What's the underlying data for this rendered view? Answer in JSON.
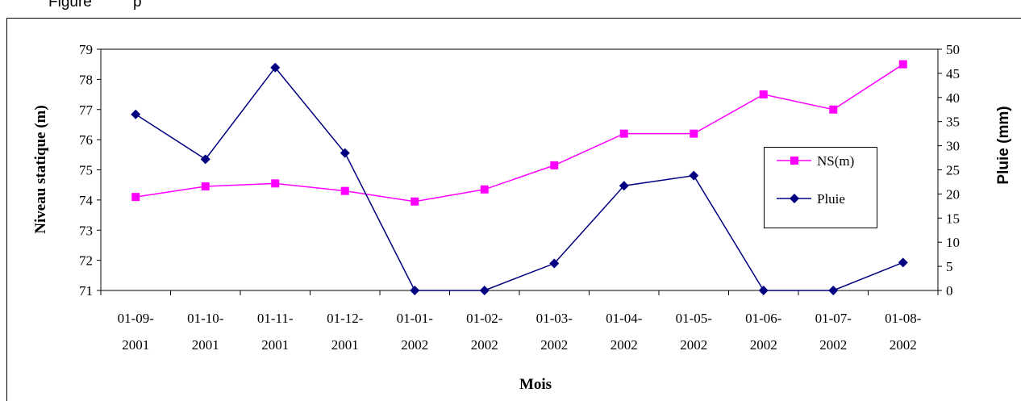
{
  "caption": {
    "prefix": "Figure",
    "suffix": "p"
  },
  "chart_data": {
    "type": "line",
    "xlabel": "Mois",
    "ylabel": "Niveau statique (m)",
    "ylabel_right": "Pluie (mm)",
    "categories": [
      [
        "01-09-",
        "2001"
      ],
      [
        "01-10-",
        "2001"
      ],
      [
        "01-11-",
        "2001"
      ],
      [
        "01-12-",
        "2001"
      ],
      [
        "01-01-",
        "2002"
      ],
      [
        "01-02-",
        "2002"
      ],
      [
        "01-03-",
        "2002"
      ],
      [
        "01-04-",
        "2002"
      ],
      [
        "01-05-",
        "2002"
      ],
      [
        "01-06-",
        "2002"
      ],
      [
        "01-07-",
        "2002"
      ],
      [
        "01-08-",
        "2002"
      ]
    ],
    "ylim": [
      71,
      79
    ],
    "yticks": [
      71,
      72,
      73,
      74,
      75,
      76,
      77,
      78,
      79
    ],
    "y2lim": [
      0,
      50
    ],
    "y2ticks": [
      0,
      5,
      10,
      15,
      20,
      25,
      30,
      35,
      40,
      45,
      50
    ],
    "grid": false,
    "legend_position": "right",
    "series": [
      {
        "name": "NS(m)",
        "axis": "left",
        "color": "#ff00ff",
        "marker": "square",
        "values": [
          74.1,
          74.45,
          74.55,
          74.3,
          73.95,
          74.35,
          75.15,
          76.2,
          76.2,
          77.5,
          77.0,
          78.5
        ]
      },
      {
        "name": "Pluie",
        "axis": "right",
        "color": "#000080",
        "marker": "diamond",
        "values": [
          36.5,
          27.2,
          46.2,
          28.5,
          0,
          0,
          5.6,
          21.7,
          23.8,
          0,
          0,
          5.8
        ]
      }
    ]
  }
}
